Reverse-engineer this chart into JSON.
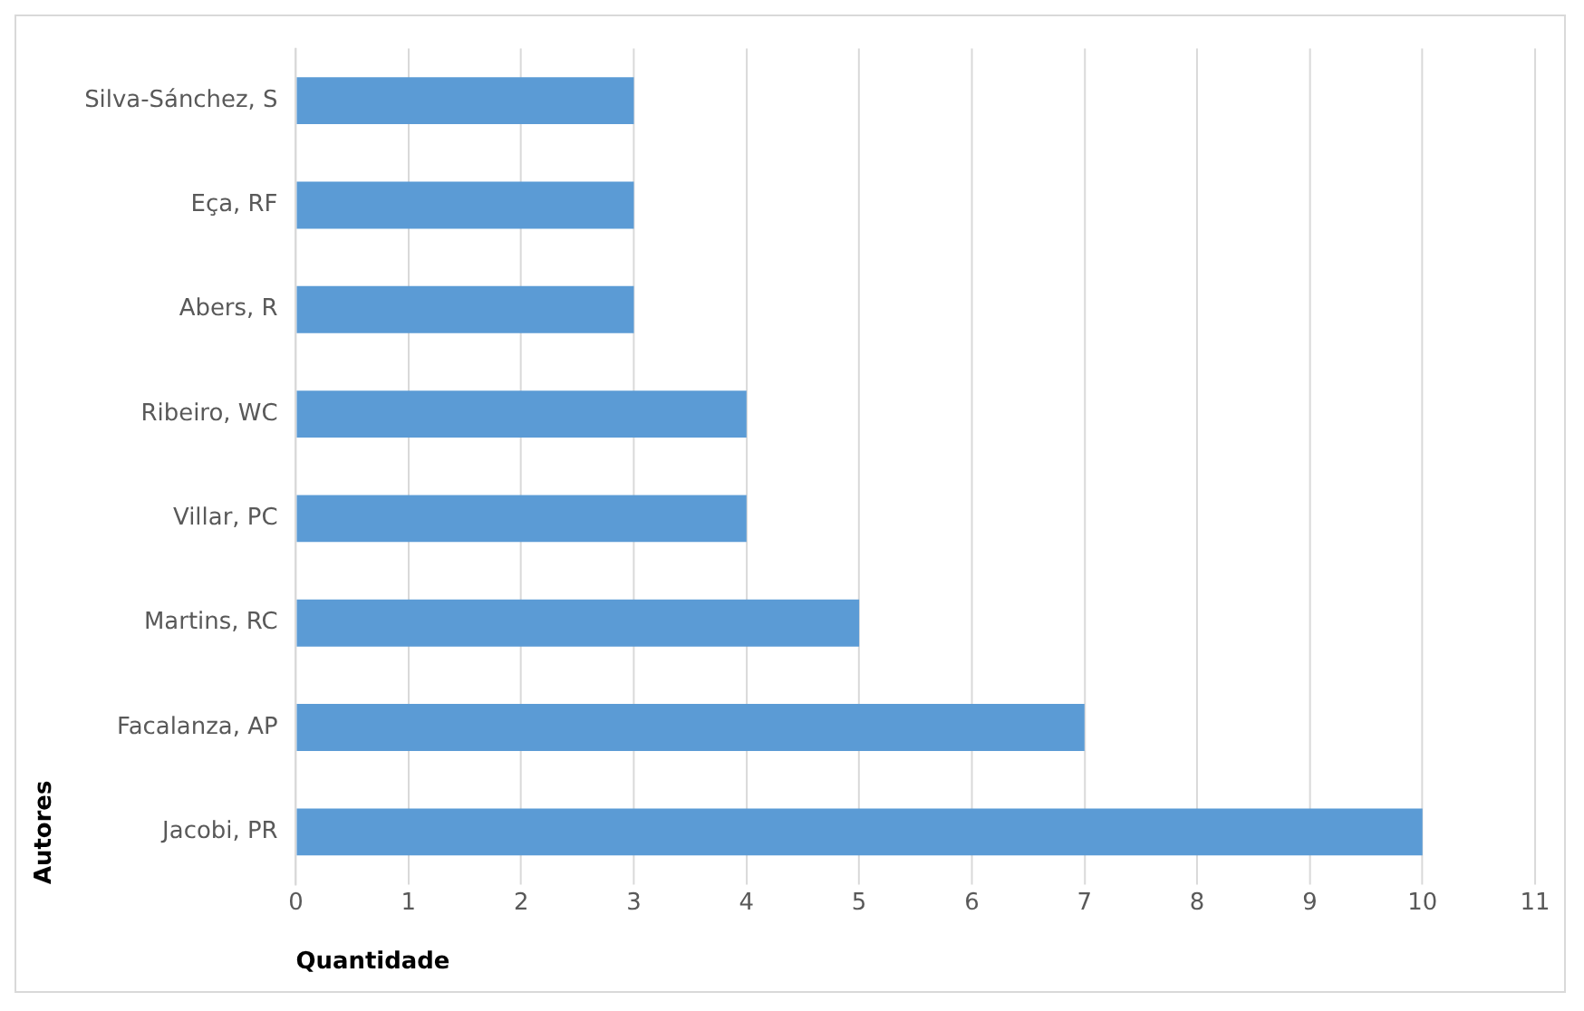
{
  "chart_data": {
    "type": "bar",
    "orientation": "horizontal",
    "xlabel": "Quantidade",
    "ylabel": "Autores",
    "categories": [
      "Silva-Sánchez, S",
      "Eça, RF",
      "Abers, R",
      "Ribeiro, WC",
      "Villar, PC",
      "Martins, RC",
      "Facalanza, AP",
      "Jacobi, PR"
    ],
    "values": [
      3,
      3,
      3,
      4,
      4,
      5,
      7,
      10
    ],
    "color": "#5b9bd5",
    "xlim": [
      0,
      11
    ],
    "xticks": [
      0,
      1,
      2,
      3,
      4,
      5,
      6,
      7,
      8,
      9,
      10,
      11
    ],
    "grid": "x",
    "legend": false
  }
}
